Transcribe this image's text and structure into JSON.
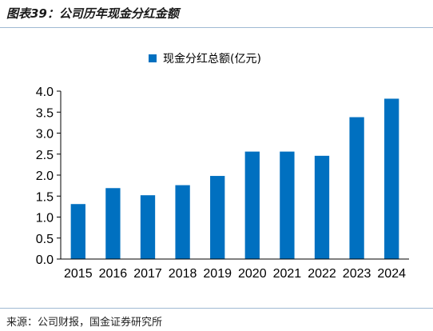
{
  "header": {
    "figure_title": "图表39：公司历年现金分红金额"
  },
  "footer": {
    "source": "来源：公司财报，国金证券研究所"
  },
  "colors": {
    "bar": "#0070c0",
    "rule": "#9fb9d3",
    "axis": "#000000"
  },
  "chart_data": {
    "type": "bar",
    "categories": [
      "2015",
      "2016",
      "2017",
      "2018",
      "2019",
      "2020",
      "2021",
      "2022",
      "2023",
      "2024"
    ],
    "series": [
      {
        "name": "现金分红总额(亿元)",
        "values": [
          1.31,
          1.69,
          1.52,
          1.76,
          1.98,
          2.56,
          2.56,
          2.46,
          3.38,
          3.82
        ]
      }
    ],
    "ylim": [
      0,
      4.0
    ],
    "yticks": [
      "0.0",
      "0.5",
      "1.0",
      "1.5",
      "2.0",
      "2.5",
      "3.0",
      "3.5",
      "4.0"
    ],
    "grid": false,
    "legend_position": "top-center"
  }
}
